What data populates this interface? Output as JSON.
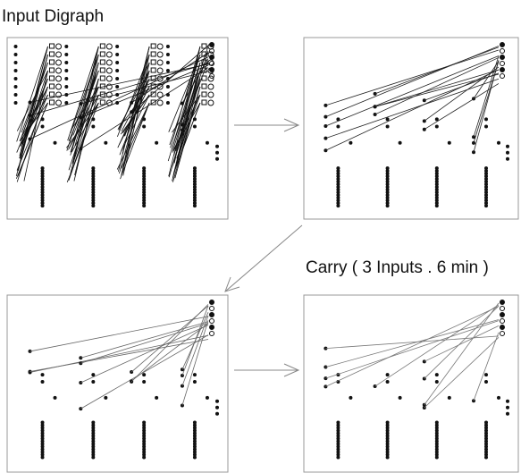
{
  "title": "Input Digraph",
  "caption": "Carry ( 3 Inputs . 6 min )"
}
